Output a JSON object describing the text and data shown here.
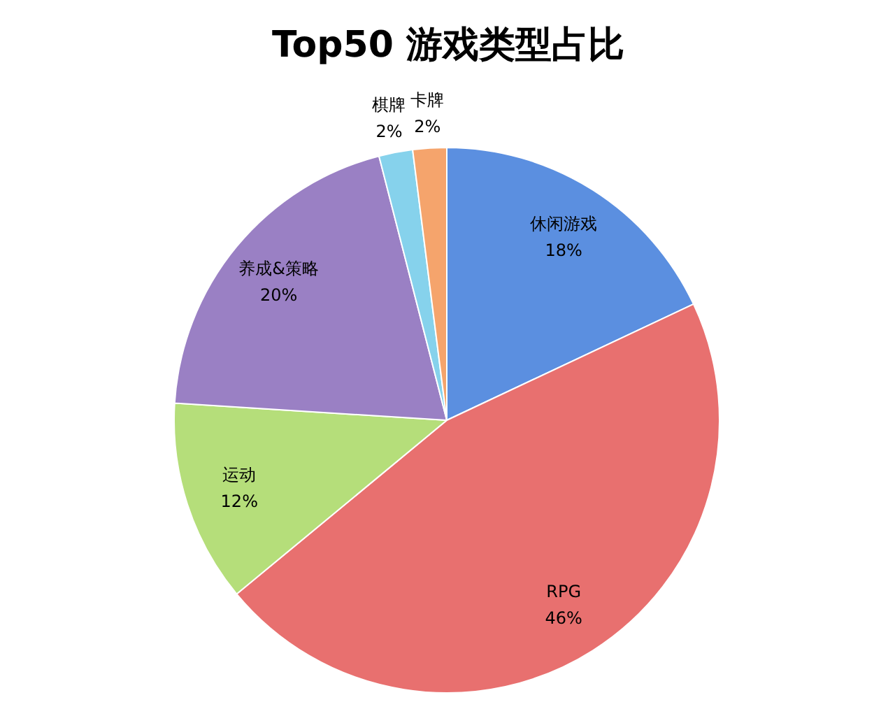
{
  "chart_data": {
    "type": "pie",
    "title": "Top50 游戏类型占比",
    "categories": [
      "休闲游戏",
      "RPG",
      "运动",
      "养成&策略",
      "棋牌",
      "卡牌"
    ],
    "values": [
      18,
      46,
      12,
      20,
      2,
      2
    ],
    "value_labels": [
      "18%",
      "46%",
      "12%",
      "20%",
      "2%",
      "2%"
    ],
    "colors": [
      "#5b8fe0",
      "#e8706f",
      "#b5de7a",
      "#9a80c4",
      "#86d2ec",
      "#f5a46c"
    ]
  }
}
